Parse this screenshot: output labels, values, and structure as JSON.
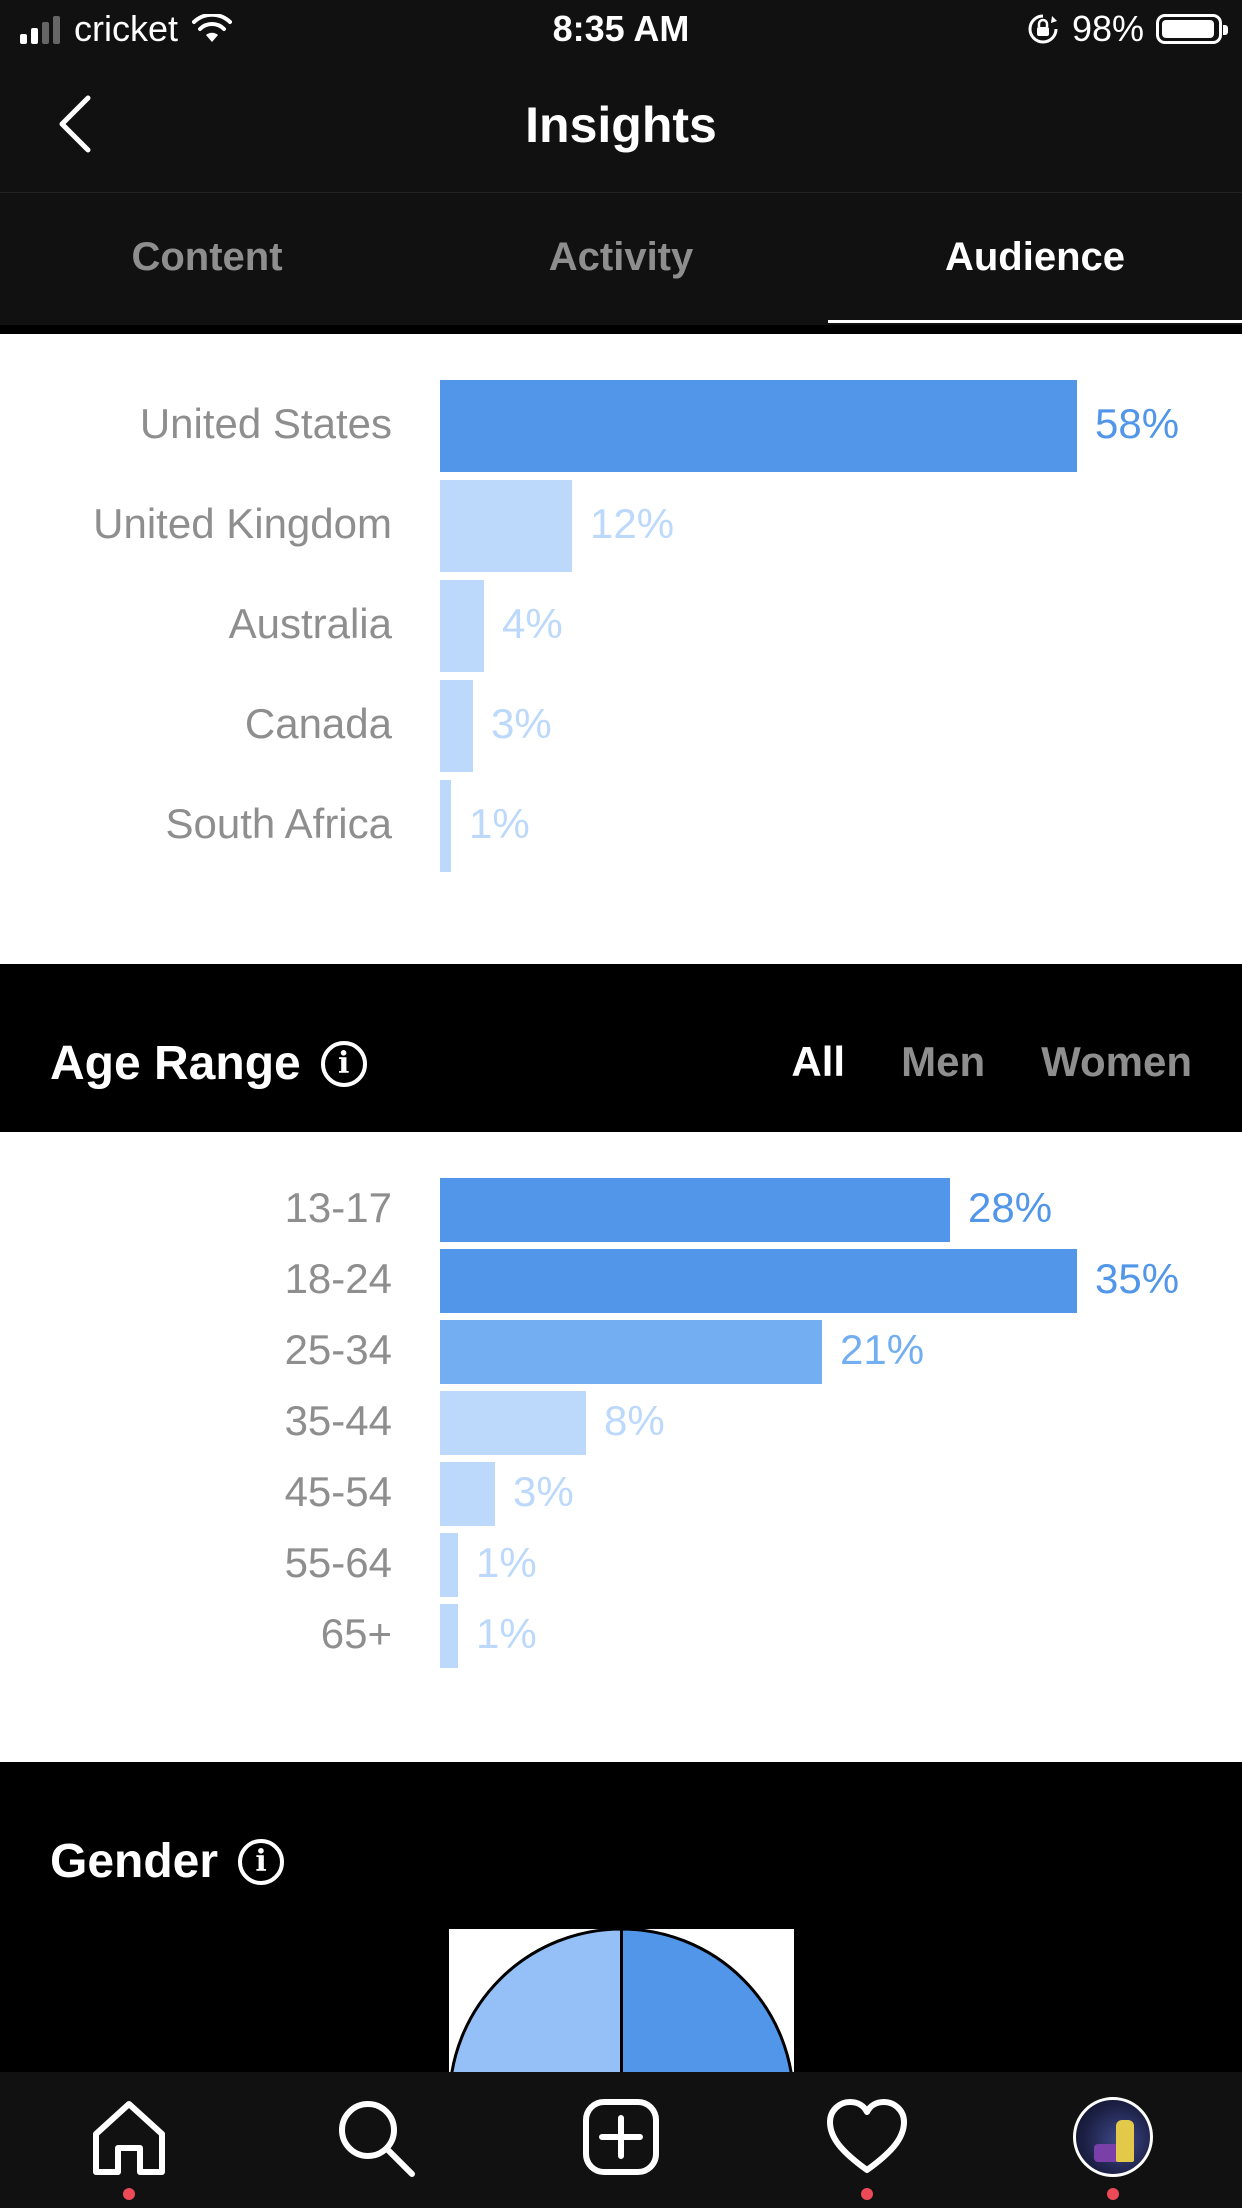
{
  "status_bar": {
    "carrier": "cricket",
    "time": "8:35 AM",
    "battery": "98%"
  },
  "header": {
    "title": "Insights"
  },
  "tabs": [
    {
      "label": "Content",
      "active": false
    },
    {
      "label": "Activity",
      "active": false
    },
    {
      "label": "Audience",
      "active": true
    }
  ],
  "colors": {
    "strong": "#5196e8",
    "medium": "#74aef2",
    "light": "#bcd9fb"
  },
  "chart_data": [
    {
      "type": "bar",
      "orientation": "horizontal",
      "categories": [
        "United States",
        "United Kingdom",
        "Australia",
        "Canada",
        "South Africa"
      ],
      "values": [
        58,
        12,
        4,
        3,
        1
      ],
      "labels": [
        "58%",
        "12%",
        "4%",
        "3%",
        "1%"
      ],
      "xlim": [
        0,
        58
      ]
    },
    {
      "type": "bar",
      "orientation": "horizontal",
      "title": "Age Range",
      "categories": [
        "13-17",
        "18-24",
        "25-34",
        "35-44",
        "45-54",
        "55-64",
        "65+"
      ],
      "values": [
        28,
        35,
        21,
        8,
        3,
        1,
        1
      ],
      "labels": [
        "28%",
        "35%",
        "21%",
        "8%",
        "3%",
        "1%",
        "1%"
      ],
      "xlim": [
        0,
        35
      ]
    }
  ],
  "age_range": {
    "title": "Age Range",
    "filters": [
      {
        "label": "All",
        "active": true
      },
      {
        "label": "Men",
        "active": false
      },
      {
        "label": "Women",
        "active": false
      }
    ]
  },
  "gender": {
    "title": "Gender"
  },
  "bottom_nav": {
    "items": [
      {
        "name": "home",
        "icon": "home-icon",
        "dot": true
      },
      {
        "name": "search",
        "icon": "search-icon",
        "dot": false
      },
      {
        "name": "new-post",
        "icon": "plus-square-icon",
        "dot": false
      },
      {
        "name": "activity",
        "icon": "heart-icon",
        "dot": true
      },
      {
        "name": "profile",
        "icon": "avatar",
        "dot": true
      }
    ]
  }
}
